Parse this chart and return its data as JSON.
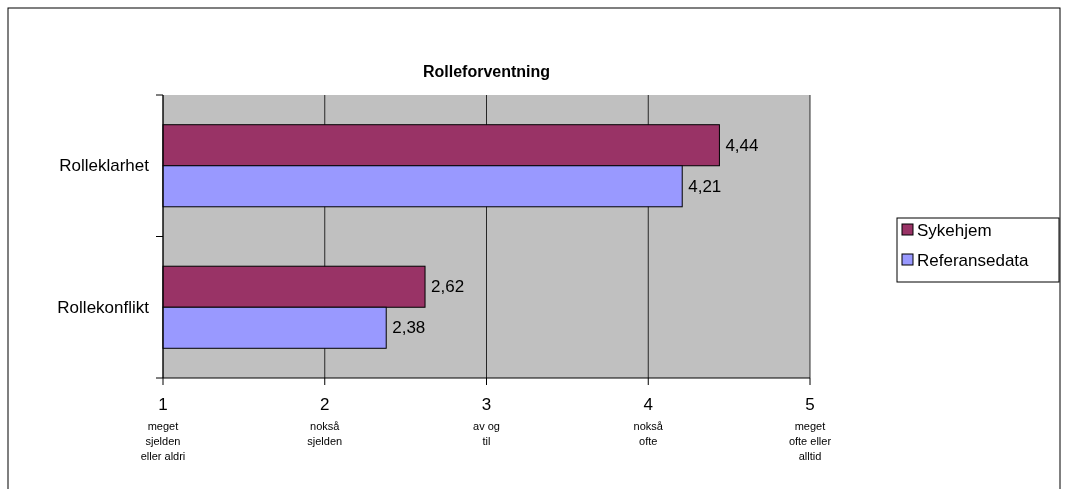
{
  "chart_data": {
    "type": "bar",
    "orientation": "horizontal",
    "title": "Rolleforventning",
    "categories": [
      "Rolleklarhet",
      "Rollekonflikt"
    ],
    "series": [
      {
        "name": "Sykehjem",
        "color": "#993366",
        "values": [
          4.44,
          2.62
        ],
        "value_labels": [
          "4,44",
          "2,62"
        ]
      },
      {
        "name": "Referansedata",
        "color": "#9999ff",
        "values": [
          4.21,
          2.38
        ],
        "value_labels": [
          "4,21",
          "2,38"
        ]
      }
    ],
    "xlim": [
      1,
      5
    ],
    "xticks": [
      {
        "value": 1,
        "label": "1\nmeget\nsjelden\neller aldri"
      },
      {
        "value": 2,
        "label": "2\nnokså\nsjelden"
      },
      {
        "value": 3,
        "label": "3\nav og\ntil"
      },
      {
        "value": 4,
        "label": "4\nnokså\nofte"
      },
      {
        "value": 5,
        "label": "5\nmeget\nofte eller\nalltid"
      }
    ],
    "grid": "x",
    "legend": "right"
  }
}
